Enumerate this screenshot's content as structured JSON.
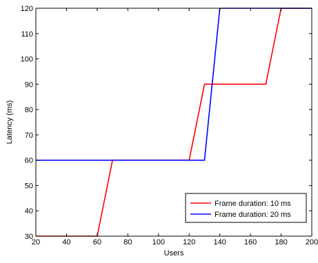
{
  "chart_data": {
    "type": "line",
    "title": "",
    "xlabel": "Users",
    "ylabel": "Latency (ms)",
    "xlim": [
      20,
      200
    ],
    "ylim": [
      30,
      120
    ],
    "x_ticks": [
      20,
      40,
      60,
      80,
      100,
      120,
      140,
      160,
      180,
      200
    ],
    "y_ticks": [
      30,
      40,
      50,
      60,
      70,
      80,
      90,
      100,
      110,
      120
    ],
    "grid": false,
    "legend_position": "bottom-right",
    "series": [
      {
        "name": "Frame duration: 10 ms",
        "color": "#ff0000",
        "x": [
          20,
          60,
          70,
          120,
          130,
          170,
          180,
          200
        ],
        "y": [
          30,
          30,
          60,
          60,
          90,
          90,
          120,
          120
        ]
      },
      {
        "name": "Frame duration: 20 ms",
        "color": "#0000ff",
        "x": [
          20,
          130,
          140,
          200
        ],
        "y": [
          60,
          60,
          120,
          120
        ]
      }
    ]
  }
}
